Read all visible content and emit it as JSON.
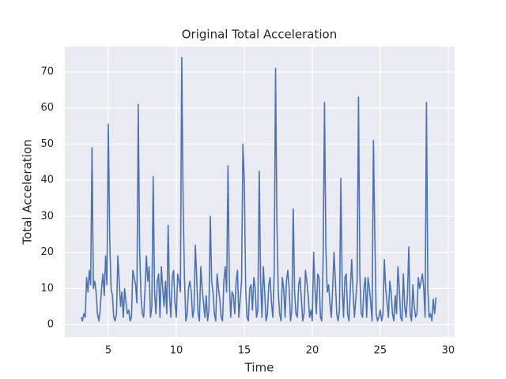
{
  "chart_data": {
    "type": "line",
    "title": "Original Total Acceleration",
    "x_label": "Time",
    "y_label": "Total Acceleration",
    "color": "#4c72b0",
    "grid": true,
    "xlim": [
      1.8,
      30.47
    ],
    "ylim": [
      -3.5,
      77
    ],
    "xticks": [
      5,
      10,
      15,
      20,
      25,
      30
    ],
    "yticks": [
      0,
      10,
      20,
      30,
      40,
      50,
      60,
      70
    ],
    "x": [
      3.0,
      3.1,
      3.2,
      3.3,
      3.4,
      3.5,
      3.6,
      3.7,
      3.8,
      3.9,
      4.0,
      4.1,
      4.2,
      4.3,
      4.4,
      4.5,
      4.6,
      4.7,
      4.8,
      4.9,
      5.0,
      5.1,
      5.2,
      5.3,
      5.4,
      5.5,
      5.6,
      5.7,
      5.8,
      5.9,
      6.0,
      6.1,
      6.2,
      6.3,
      6.4,
      6.5,
      6.6,
      6.7,
      6.8,
      6.9,
      7.0,
      7.1,
      7.2,
      7.3,
      7.4,
      7.5,
      7.6,
      7.7,
      7.8,
      7.9,
      8.0,
      8.1,
      8.2,
      8.3,
      8.4,
      8.5,
      8.6,
      8.7,
      8.8,
      8.9,
      9.0,
      9.1,
      9.2,
      9.3,
      9.4,
      9.5,
      9.6,
      9.7,
      9.8,
      9.9,
      10.0,
      10.1,
      10.2,
      10.3,
      10.4,
      10.5,
      10.6,
      10.7,
      10.8,
      10.9,
      11.0,
      11.1,
      11.2,
      11.3,
      11.4,
      11.5,
      11.6,
      11.7,
      11.8,
      11.9,
      12.0,
      12.1,
      12.2,
      12.3,
      12.4,
      12.5,
      12.6,
      12.7,
      12.8,
      12.9,
      13.0,
      13.1,
      13.2,
      13.3,
      13.4,
      13.5,
      13.6,
      13.7,
      13.8,
      13.9,
      14.0,
      14.1,
      14.2,
      14.3,
      14.4,
      14.5,
      14.6,
      14.7,
      14.8,
      14.9,
      15.0,
      15.1,
      15.2,
      15.3,
      15.4,
      15.5,
      15.6,
      15.7,
      15.8,
      15.9,
      16.0,
      16.1,
      16.2,
      16.3,
      16.4,
      16.5,
      16.6,
      16.7,
      16.8,
      16.9,
      17.0,
      17.1,
      17.2,
      17.3,
      17.4,
      17.5,
      17.6,
      17.7,
      17.8,
      17.9,
      18.0,
      18.1,
      18.2,
      18.3,
      18.4,
      18.5,
      18.6,
      18.7,
      18.8,
      18.9,
      19.0,
      19.1,
      19.2,
      19.3,
      19.4,
      19.5,
      19.6,
      19.7,
      19.8,
      19.9,
      20.0,
      20.1,
      20.2,
      20.3,
      20.4,
      20.5,
      20.6,
      20.7,
      20.8,
      20.9,
      21.0,
      21.1,
      21.2,
      21.3,
      21.4,
      21.5,
      21.6,
      21.7,
      21.8,
      21.9,
      22.0,
      22.1,
      22.2,
      22.3,
      22.4,
      22.5,
      22.6,
      22.7,
      22.8,
      22.9,
      23.0,
      23.1,
      23.2,
      23.3,
      23.4,
      23.5,
      23.6,
      23.7,
      23.8,
      23.9,
      24.0,
      24.1,
      24.2,
      24.3,
      24.4,
      24.5,
      24.6,
      24.7,
      24.8,
      24.9,
      25.0,
      25.1,
      25.2,
      25.3,
      25.4,
      25.5,
      25.6,
      25.7,
      25.8,
      25.9,
      26.0,
      26.1,
      26.2,
      26.3,
      26.4,
      26.5,
      26.6,
      26.7,
      26.8,
      26.9,
      27.0,
      27.1,
      27.2,
      27.3,
      27.4,
      27.5,
      27.6,
      27.7,
      27.8,
      27.9,
      28.0,
      28.1,
      28.2,
      28.3,
      28.4,
      28.5,
      28.6,
      28.7,
      28.8,
      28.9,
      29.0,
      29.1
    ],
    "values": [
      2,
      1,
      3,
      2,
      13,
      9,
      15,
      11,
      49,
      10,
      12,
      9,
      3,
      1,
      4,
      10,
      14,
      8,
      19,
      11,
      55.5,
      24,
      10,
      8,
      2,
      1,
      3,
      19,
      12,
      5,
      9,
      2,
      10,
      6,
      3,
      4,
      1,
      2,
      15,
      13,
      11,
      6,
      61,
      21,
      8,
      3,
      2,
      10,
      19,
      12,
      16,
      2,
      5,
      41,
      9,
      3,
      12,
      14,
      2,
      16,
      10,
      5,
      12,
      3,
      27.5,
      8,
      2,
      13,
      15,
      6,
      2,
      14,
      12,
      9,
      74,
      34,
      13,
      1,
      3,
      10,
      12,
      9,
      2,
      4,
      22,
      13,
      3,
      1,
      16,
      10,
      6,
      2,
      8,
      1,
      4,
      30,
      12,
      9,
      3,
      1,
      14,
      10,
      7,
      2,
      1,
      12,
      16,
      9,
      44,
      12,
      2,
      9,
      8,
      3,
      12,
      15,
      2,
      7,
      12,
      50,
      40,
      10,
      2,
      1,
      10,
      11,
      4,
      13,
      10,
      2,
      4,
      42.5,
      12,
      2,
      16,
      9,
      1,
      3,
      11,
      13,
      6,
      2,
      14,
      71,
      28,
      9,
      3,
      1,
      13,
      10,
      2,
      12,
      15,
      10,
      1,
      4,
      32,
      9,
      3,
      2,
      11,
      13,
      7,
      1,
      3,
      15,
      12,
      8,
      2,
      4,
      1,
      20,
      10,
      3,
      14,
      13,
      2,
      1,
      18,
      61.5,
      22,
      9,
      11,
      6,
      2,
      10,
      20,
      12,
      3,
      1,
      4,
      40.5,
      11,
      2,
      13,
      14,
      3,
      1,
      10,
      18,
      9,
      2,
      7,
      12,
      63,
      14,
      3,
      2,
      10,
      13,
      2,
      13,
      10,
      6,
      1,
      51,
      25,
      3,
      1,
      2,
      4,
      1,
      3,
      18,
      10,
      6,
      2,
      12,
      9,
      3,
      1,
      8,
      3,
      16,
      10,
      2,
      1,
      14,
      5,
      2,
      8,
      21.5,
      3,
      1,
      11,
      5,
      2,
      3,
      13,
      10,
      12,
      14,
      10,
      2,
      61.5,
      10,
      2,
      3,
      1,
      7,
      3,
      7.5
    ]
  }
}
